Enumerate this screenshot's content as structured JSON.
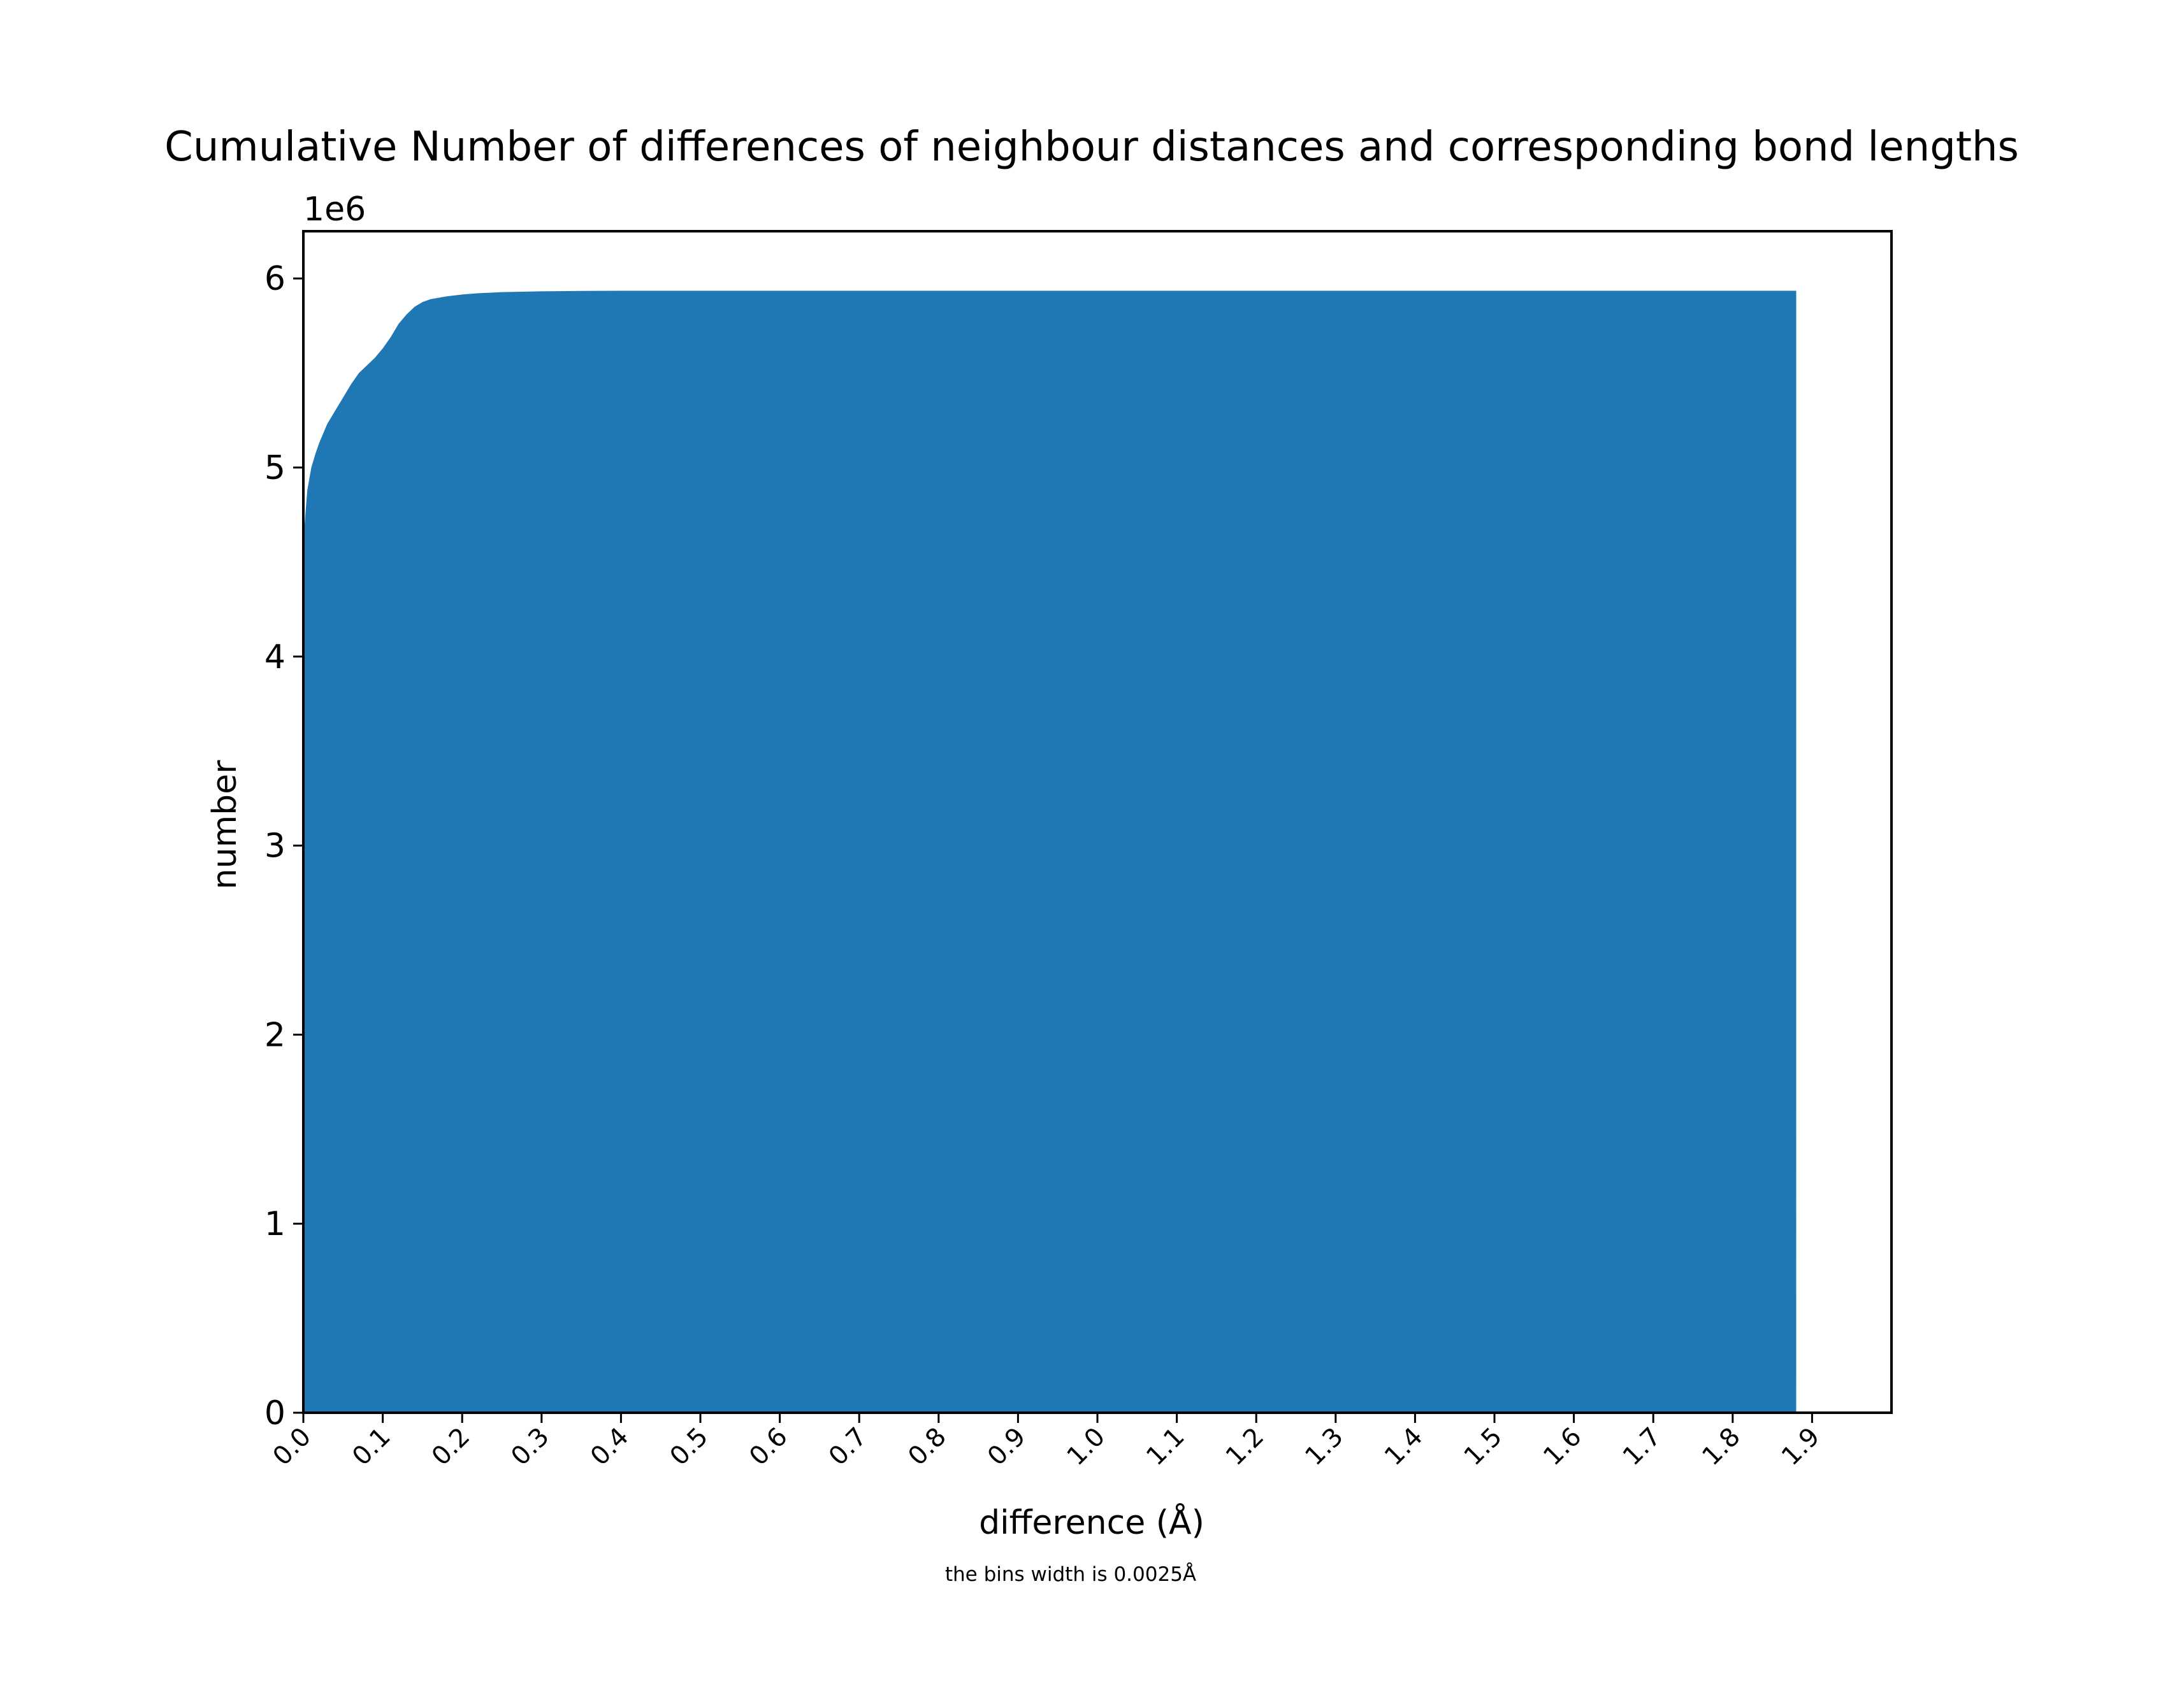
{
  "chart_data": {
    "type": "area",
    "title": "Cumulative Number of differences of neighbour distances and corresponding bond lengths",
    "xlabel": "difference (Å)",
    "ylabel": "number",
    "y_offset_label": "1e6",
    "note": "the bins width is 0.0025Å",
    "xlim": [
      0.0,
      2.0
    ],
    "ylim": [
      0,
      6.25
    ],
    "y_scale_multiplier": 1000000,
    "x_ticks": [
      "0.0",
      "0.1",
      "0.2",
      "0.3",
      "0.4",
      "0.5",
      "0.6",
      "0.7",
      "0.8",
      "0.9",
      "1.0",
      "1.1",
      "1.2",
      "1.3",
      "1.4",
      "1.5",
      "1.6",
      "1.7",
      "1.8",
      "1.9"
    ],
    "y_ticks": [
      "0",
      "1",
      "2",
      "3",
      "4",
      "5",
      "6"
    ],
    "grid": false,
    "color": "#1f77b4",
    "series": [
      {
        "x": [
          0.0,
          0.0025,
          0.005,
          0.01,
          0.015,
          0.02,
          0.03,
          0.04,
          0.05,
          0.06,
          0.07,
          0.08,
          0.09,
          0.1,
          0.11,
          0.12,
          0.13,
          0.14,
          0.15,
          0.16,
          0.18,
          0.2,
          0.22,
          0.25,
          0.3,
          0.35,
          0.4,
          0.5,
          1.0,
          1.5,
          1.88
        ],
        "y": [
          4.6,
          4.75,
          4.88,
          5.0,
          5.07,
          5.13,
          5.23,
          5.3,
          5.37,
          5.44,
          5.5,
          5.54,
          5.58,
          5.63,
          5.69,
          5.76,
          5.81,
          5.85,
          5.875,
          5.89,
          5.905,
          5.915,
          5.922,
          5.928,
          5.932,
          5.934,
          5.935,
          5.935,
          5.935,
          5.935,
          5.935
        ]
      }
    ]
  }
}
